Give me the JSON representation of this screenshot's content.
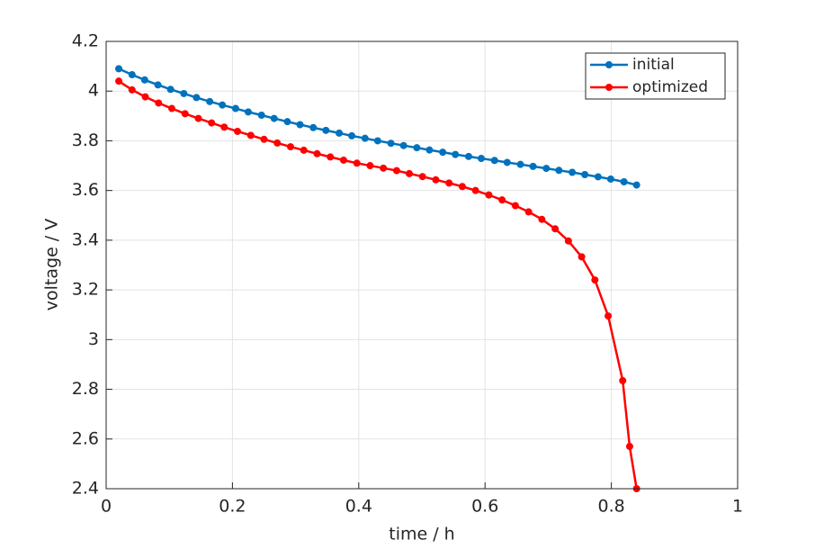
{
  "chart_data": {
    "type": "line",
    "xlabel": "time  / h",
    "ylabel": "voltage  / V",
    "xlim": [
      0,
      1
    ],
    "ylim": [
      2.4,
      4.2
    ],
    "xticks": [
      0,
      0.2,
      0.4,
      0.6,
      0.8,
      1
    ],
    "yticks": [
      2.4,
      2.6,
      2.8,
      3,
      3.2,
      3.4,
      3.6,
      3.8,
      4,
      4.2
    ],
    "grid": true,
    "legend": "upper right",
    "series": [
      {
        "name": "initial",
        "color": "#0072bd",
        "x": [
          0.02,
          0.041,
          0.061,
          0.082,
          0.102,
          0.123,
          0.143,
          0.164,
          0.184,
          0.205,
          0.225,
          0.246,
          0.266,
          0.287,
          0.307,
          0.328,
          0.348,
          0.369,
          0.389,
          0.41,
          0.43,
          0.451,
          0.471,
          0.492,
          0.512,
          0.533,
          0.553,
          0.574,
          0.594,
          0.615,
          0.635,
          0.656,
          0.676,
          0.697,
          0.717,
          0.738,
          0.758,
          0.779,
          0.799,
          0.82,
          0.84
        ],
        "values": [
          4.09,
          4.066,
          4.045,
          4.025,
          4.007,
          3.99,
          3.974,
          3.958,
          3.944,
          3.93,
          3.916,
          3.903,
          3.89,
          3.877,
          3.865,
          3.853,
          3.842,
          3.831,
          3.82,
          3.81,
          3.8,
          3.79,
          3.781,
          3.772,
          3.763,
          3.754,
          3.745,
          3.737,
          3.729,
          3.721,
          3.713,
          3.705,
          3.697,
          3.689,
          3.681,
          3.673,
          3.664,
          3.655,
          3.646,
          3.635,
          3.622
        ]
      },
      {
        "name": "optimized",
        "color": "#ff0000",
        "x": [
          0.02,
          0.041,
          0.062,
          0.083,
          0.104,
          0.125,
          0.146,
          0.167,
          0.187,
          0.208,
          0.229,
          0.25,
          0.271,
          0.292,
          0.313,
          0.334,
          0.355,
          0.376,
          0.397,
          0.418,
          0.439,
          0.46,
          0.48,
          0.501,
          0.522,
          0.543,
          0.564,
          0.585,
          0.606,
          0.627,
          0.648,
          0.669,
          0.69,
          0.711,
          0.732,
          0.753,
          0.774,
          0.795,
          0.818,
          0.829,
          0.84
        ],
        "values": [
          4.04,
          4.005,
          3.977,
          3.952,
          3.93,
          3.909,
          3.89,
          3.872,
          3.855,
          3.838,
          3.822,
          3.806,
          3.791,
          3.776,
          3.762,
          3.748,
          3.735,
          3.722,
          3.71,
          3.7,
          3.69,
          3.68,
          3.668,
          3.656,
          3.643,
          3.63,
          3.616,
          3.6,
          3.582,
          3.562,
          3.539,
          3.514,
          3.484,
          3.446,
          3.397,
          3.333,
          3.24,
          3.095,
          2.835,
          2.57,
          2.4
        ]
      }
    ]
  }
}
